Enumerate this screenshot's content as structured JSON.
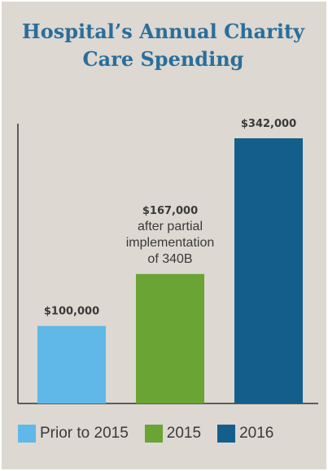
{
  "chart_data": {
    "type": "bar",
    "title_lines": [
      "Hospital’s Annual Charity",
      "Care Spending"
    ],
    "categories": [
      "Prior to 2015",
      "2015",
      "2016"
    ],
    "values": [
      100000,
      167000,
      342000
    ],
    "data_labels": [
      "$100,000",
      "$167,000",
      "$342,000"
    ],
    "annotation_lines": [
      "after partial",
      "implementation",
      "of 340B"
    ],
    "colors": [
      "#5fb8e8",
      "#6aa434",
      "#145e8c"
    ],
    "ylim": [
      0,
      342000
    ],
    "grid": false,
    "legend": {
      "placement": "bottom",
      "entries": [
        "Prior to 2015",
        "2015",
        "2016"
      ]
    }
  }
}
